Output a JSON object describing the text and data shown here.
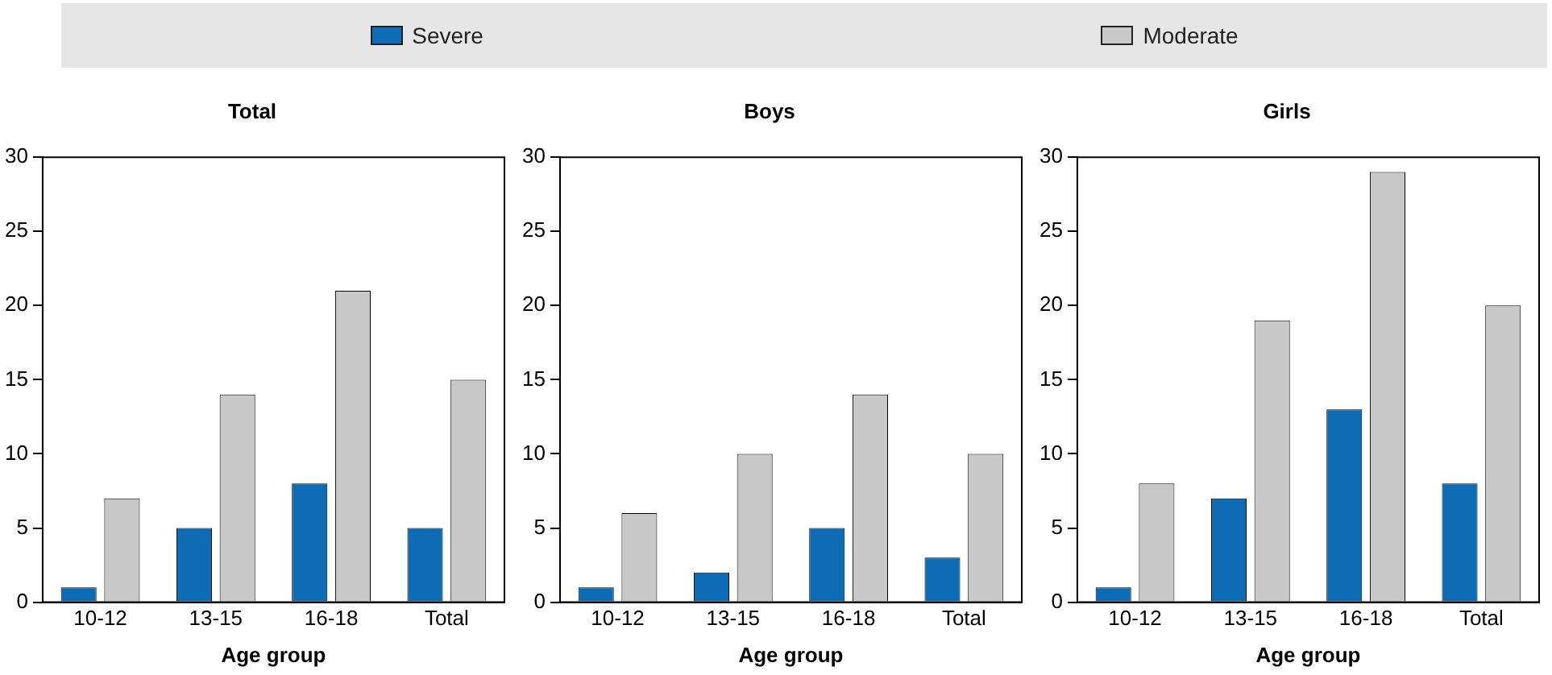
{
  "chart_data": [
    {
      "type": "bar",
      "title": "Total",
      "xlabel": "Age group",
      "categories": [
        "10-12",
        "13-15",
        "16-18",
        "Total"
      ],
      "legend": "top",
      "ylim": [
        0,
        30
      ],
      "yticks": [
        0,
        5,
        10,
        15,
        20,
        25,
        30
      ],
      "grid": false,
      "series": [
        {
          "name": "Severe",
          "color": "#0e6cb4",
          "values": [
            1,
            5,
            8,
            5
          ]
        },
        {
          "name": "Moderate",
          "color": "#c8c8c8",
          "values": [
            7,
            14,
            21,
            15
          ]
        }
      ]
    },
    {
      "type": "bar",
      "title": "Boys",
      "xlabel": "Age group",
      "categories": [
        "10-12",
        "13-15",
        "16-18",
        "Total"
      ],
      "ylim": [
        0,
        30
      ],
      "yticks": [
        0,
        5,
        10,
        15,
        20,
        25,
        30
      ],
      "grid": false,
      "series": [
        {
          "color": "#0e6cb4",
          "values": [
            1,
            2,
            5,
            3
          ]
        },
        {
          "color": "#c8c8c8",
          "values": [
            6,
            10,
            14,
            10
          ]
        }
      ]
    },
    {
      "type": "bar",
      "title": "Girls",
      "xlabel": "Age group",
      "categories": [
        "10-12",
        "13-15",
        "16-18",
        "Total"
      ],
      "ylim": [
        0,
        30
      ],
      "yticks": [
        0,
        5,
        10,
        15,
        20,
        25,
        30
      ],
      "grid": false,
      "series": [
        {
          "color": "#0e6cb4",
          "values": [
            1,
            7,
            13,
            8
          ]
        },
        {
          "color": "#c8c8c8",
          "values": [
            8,
            19,
            29,
            20
          ]
        }
      ]
    }
  ]
}
